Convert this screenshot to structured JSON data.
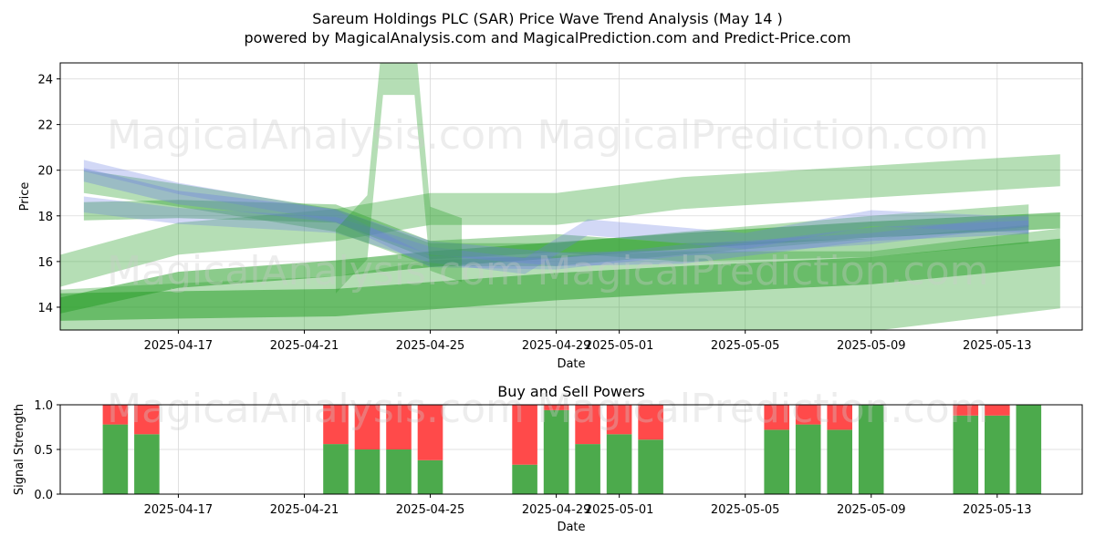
{
  "title_line1": "Sareum Holdings PLC (SAR) Price Wave Trend Analysis (May 14 )",
  "title_line2": "powered by MagicalAnalysis.com and MagicalPrediction.com and Predict-Price.com",
  "watermarks": [
    "MagicalAnalysis.com",
    "MagicalPrediction.com"
  ],
  "colors": {
    "green_band": "#2ca02c",
    "blue_band": "#6b7fe0",
    "buy": "#4caa4c",
    "sell": "#ff4a4a"
  },
  "chart_data": [
    {
      "type": "area",
      "xlabel": "Date",
      "ylabel": "Price",
      "ylim": [
        13.0,
        24.7
      ],
      "xlim": [
        "2025-04-13",
        "2025-05-15"
      ],
      "yticks": [
        14,
        16,
        18,
        20,
        22,
        24
      ],
      "xticks": [
        "2025-04-17",
        "2025-04-21",
        "2025-04-25",
        "2025-04-29",
        "2025-05-01",
        "2025-05-05",
        "2025-05-09",
        "2025-05-13"
      ],
      "grid": true,
      "series": [
        {
          "x": [
            "2025-04-13",
            "2025-04-17",
            "2025-04-22",
            "2025-04-25",
            "2025-04-29",
            "2025-05-03",
            "2025-05-09",
            "2025-05-15"
          ],
          "y": [
            14.0,
            15.2,
            15.7,
            16.1,
            16.5,
            16.9,
            17.4,
            17.8
          ],
          "width": 0.7,
          "color": "green",
          "opacity": 0.55
        },
        {
          "x": [
            "2025-04-13",
            "2025-04-17",
            "2025-04-22",
            "2025-04-25",
            "2025-04-29",
            "2025-05-03",
            "2025-05-09",
            "2025-05-15"
          ],
          "y": [
            14.0,
            14.1,
            14.2,
            14.5,
            14.9,
            15.2,
            15.6,
            16.4
          ],
          "width": 1.2,
          "color": "green",
          "opacity": 0.55
        },
        {
          "x": [
            "2025-04-13",
            "2025-04-17",
            "2025-04-22",
            "2025-04-25",
            "2025-04-29",
            "2025-05-03",
            "2025-05-09",
            "2025-05-15"
          ],
          "y": [
            15.5,
            17.0,
            17.6,
            18.3,
            18.3,
            19.0,
            19.5,
            20.0
          ],
          "width": 1.4,
          "color": "green",
          "opacity": 0.35
        },
        {
          "x": [
            "2025-04-13",
            "2025-04-17",
            "2025-04-22",
            "2025-04-25",
            "2025-04-29",
            "2025-05-03",
            "2025-05-09",
            "2025-05-15"
          ],
          "y": [
            13.0,
            13.3,
            13.6,
            14.3,
            14.5,
            14.7,
            14.7,
            15.7
          ],
          "width": 3.5,
          "color": "green",
          "opacity": 0.35
        },
        {
          "x": [
            "2025-04-14",
            "2025-04-17",
            "2025-04-22",
            "2025-04-25",
            "2025-04-29",
            "2025-05-03",
            "2025-05-09",
            "2025-05-14"
          ],
          "y": [
            19.5,
            18.9,
            17.8,
            16.3,
            16.3,
            16.8,
            17.5,
            18.0
          ],
          "width": 1.0,
          "color": "green",
          "opacity": 0.35
        },
        {
          "x": [
            "2025-04-14",
            "2025-04-17",
            "2025-04-22",
            "2025-04-25",
            "2025-04-29",
            "2025-05-03",
            "2025-05-09",
            "2025-05-14"
          ],
          "y": [
            18.2,
            18.3,
            18.1,
            16.5,
            16.8,
            16.4,
            16.6,
            17.2
          ],
          "width": 0.8,
          "color": "green",
          "opacity": 0.4
        },
        {
          "x": [
            "2025-04-14",
            "2025-04-17",
            "2025-04-22",
            "2025-04-25",
            "2025-04-29",
            "2025-05-03",
            "2025-05-09",
            "2025-05-14"
          ],
          "y": [
            19.8,
            18.8,
            18.0,
            16.6,
            16.1,
            16.2,
            17.2,
            17.5
          ],
          "width": 0.6,
          "color": "blue",
          "opacity": 0.35
        },
        {
          "x": [
            "2025-04-14",
            "2025-04-17",
            "2025-04-22",
            "2025-04-25",
            "2025-04-28",
            "2025-04-30",
            "2025-05-05",
            "2025-05-09",
            "2025-05-14"
          ],
          "y": [
            18.5,
            18.0,
            17.6,
            16.3,
            15.8,
            17.5,
            16.9,
            17.9,
            17.6
          ],
          "width": 0.7,
          "color": "blue",
          "opacity": 0.3
        },
        {
          "x": [
            "2025-04-14",
            "2025-04-17",
            "2025-04-22",
            "2025-04-25",
            "2025-04-29",
            "2025-05-03",
            "2025-05-09",
            "2025-05-14"
          ],
          "y": [
            20.2,
            19.2,
            18.0,
            16.0,
            15.9,
            16.5,
            17.0,
            17.8
          ],
          "width": 0.5,
          "color": "blue",
          "opacity": 0.3
        },
        {
          "x": [
            "2025-04-22",
            "2025-04-23",
            "2025-04-23.5",
            "2025-04-24",
            "2025-04-24.5",
            "2025-04-25",
            "2025-04-26"
          ],
          "y": [
            16.0,
            17.5,
            24.7,
            24.7,
            24.7,
            17.0,
            16.5
          ],
          "width": 2.8,
          "color": "green",
          "opacity": 0.35
        }
      ]
    },
    {
      "type": "bar",
      "title": "Buy and Sell Powers",
      "xlabel": "Date",
      "ylabel": "Signal Strength",
      "ylim": [
        0.0,
        1.0
      ],
      "yticks": [
        "0.0",
        "0.5",
        "1.0"
      ],
      "xticks": [
        "2025-04-17",
        "2025-04-21",
        "2025-04-25",
        "2025-04-29",
        "2025-05-01",
        "2025-05-05",
        "2025-05-09",
        "2025-05-13"
      ],
      "grid": true,
      "categories": [
        "2025-04-15",
        "2025-04-16",
        "2025-04-22",
        "2025-04-23",
        "2025-04-24",
        "2025-04-25",
        "2025-04-28",
        "2025-04-29",
        "2025-04-30",
        "2025-05-01",
        "2025-05-02",
        "2025-05-06",
        "2025-05-07",
        "2025-05-08",
        "2025-05-09",
        "2025-05-12",
        "2025-05-13",
        "2025-05-14"
      ],
      "series": [
        {
          "name": "Buy",
          "values": [
            0.78,
            0.67,
            0.56,
            0.5,
            0.5,
            0.38,
            0.33,
            0.94,
            0.56,
            0.67,
            0.61,
            0.72,
            0.78,
            0.72,
            1.0,
            0.88,
            0.88,
            1.0
          ]
        },
        {
          "name": "Sell",
          "values": [
            0.22,
            0.33,
            0.44,
            0.5,
            0.5,
            0.62,
            0.67,
            0.06,
            0.44,
            0.33,
            0.39,
            0.28,
            0.22,
            0.28,
            0.0,
            0.12,
            0.12,
            0.0
          ]
        }
      ]
    }
  ]
}
